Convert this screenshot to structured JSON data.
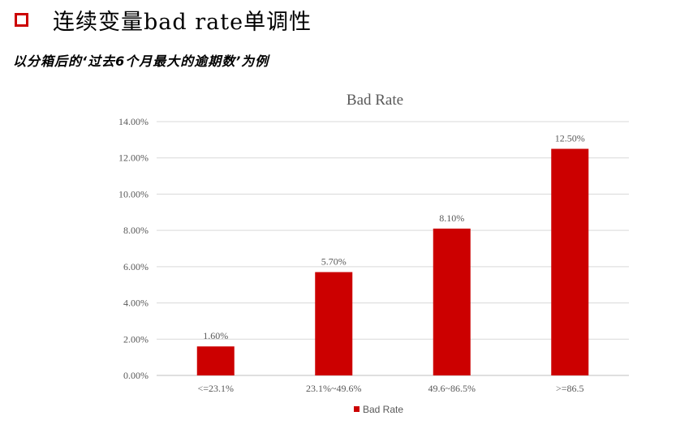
{
  "slide": {
    "title": "连续变量bad rate单调性",
    "subtitle": "以分箱后的‘过去6个月最大的逾期数’为例",
    "accent_color": "#cc0000",
    "bullet_icon": "hollow-square-bullet"
  },
  "chart_data": {
    "type": "bar",
    "title": "Bad Rate",
    "categories": [
      "<=23.1%",
      "23.1%~49.6%",
      "49.6~86.5%",
      ">=86.5"
    ],
    "series": [
      {
        "name": "Bad Rate",
        "values": [
          0.016,
          0.057,
          0.081,
          0.125
        ],
        "data_labels": [
          "1.60%",
          "5.70%",
          "8.10%",
          "12.50%"
        ],
        "color": "#cc0000"
      }
    ],
    "ylim": [
      0,
      0.14
    ],
    "yticks": [
      "0.00%",
      "2.00%",
      "4.00%",
      "6.00%",
      "8.00%",
      "10.00%",
      "12.00%",
      "14.00%"
    ],
    "grid": true,
    "legend": "bottom"
  }
}
